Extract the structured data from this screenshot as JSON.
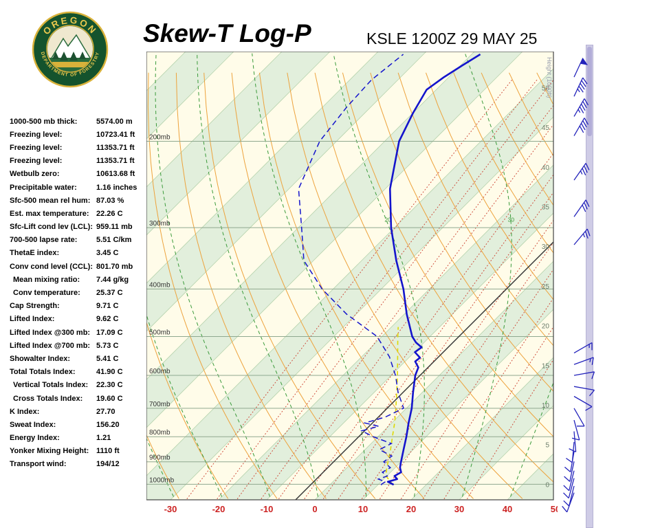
{
  "header": {
    "title": "Skew-T Log-P",
    "station": "KSLE 1200Z 29 MAY 25",
    "logo": {
      "top_text": "OREGON",
      "bottom_text": "DEPARTMENT OF FORESTRY"
    }
  },
  "indices": [
    {
      "label": "1000-500 mb thick:",
      "value": "5574.00 m",
      "indent": false
    },
    {
      "label": "Freezing level:",
      "value": "10723.41 ft",
      "indent": false
    },
    {
      "label": "Freezing level:",
      "value": "11353.71 ft",
      "indent": false
    },
    {
      "label": "Freezing level:",
      "value": "11353.71 ft",
      "indent": false
    },
    {
      "label": "Wetbulb zero:",
      "value": "10613.68 ft",
      "indent": false
    },
    {
      "label": "Precipitable water:",
      "value": "1.16 inches",
      "indent": false
    },
    {
      "label": "Sfc-500 mean rel hum:",
      "value": "87.03 %",
      "indent": false
    },
    {
      "label": "Est. max temperature:",
      "value": "22.26 C",
      "indent": false
    },
    {
      "label": "Sfc-Lift cond lev (LCL):",
      "value": "959.11 mb",
      "indent": false
    },
    {
      "label": "700-500 lapse rate:",
      "value": "5.51 C/km",
      "indent": false
    },
    {
      "label": "ThetaE index:",
      "value": "3.45 C",
      "indent": false
    },
    {
      "label": "Conv cond level (CCL):",
      "value": "801.70 mb",
      "indent": false
    },
    {
      "label": "Mean mixing ratio:",
      "value": "7.44 g/kg",
      "indent": true
    },
    {
      "label": "Conv temperature:",
      "value": "25.37 C",
      "indent": true
    },
    {
      "label": "Cap Strength:",
      "value": "9.71 C",
      "indent": false
    },
    {
      "label": "Lifted Index:",
      "value": "9.62 C",
      "indent": false
    },
    {
      "label": "Lifted Index @300 mb:",
      "value": "17.09 C",
      "indent": false
    },
    {
      "label": "Lifted Index @700 mb:",
      "value": "5.73 C",
      "indent": false
    },
    {
      "label": "Showalter Index:",
      "value": "5.41 C",
      "indent": false
    },
    {
      "label": "Total Totals Index:",
      "value": "41.90 C",
      "indent": false
    },
    {
      "label": "Vertical Totals Index:",
      "value": "22.30 C",
      "indent": true
    },
    {
      "label": "Cross Totals Index:",
      "value": "19.60 C",
      "indent": true
    },
    {
      "label": "K Index:",
      "value": "27.70",
      "indent": false
    },
    {
      "label": "Sweat Index:",
      "value": "156.20",
      "indent": false
    },
    {
      "label": "Energy Index:",
      "value": "1.21",
      "indent": false
    },
    {
      "label": "Yonker Mixing Height:",
      "value": "1110 ft",
      "indent": false
    },
    {
      "label": "Transport wind:",
      "value": "194/12",
      "indent": false
    }
  ],
  "chart_data": {
    "type": "line",
    "variant": "skew-t-log-p",
    "station": "KSLE",
    "valid_time": "1200Z 29 MAY 25",
    "x_axis": {
      "unit": "C",
      "ticks": [
        -30,
        -20,
        -10,
        0,
        10,
        20,
        30,
        40,
        50
      ]
    },
    "pressure_levels_mb": [
      200,
      300,
      400,
      500,
      600,
      700,
      800,
      900,
      1000
    ],
    "pressure_label_suffix": "mb",
    "height_axis": {
      "label": "Height (1000ft)",
      "ticks": [
        0,
        5,
        10,
        15,
        20,
        25,
        30,
        35,
        40,
        45,
        50
      ]
    },
    "series": [
      {
        "name": "temperature",
        "line": "solid",
        "points_p_T": [
          [
            1004,
            13.2
          ],
          [
            1000,
            13.0
          ],
          [
            988,
            11.4
          ],
          [
            976,
            12.8
          ],
          [
            962,
            11.6
          ],
          [
            945,
            12.2
          ],
          [
            925,
            11.0
          ],
          [
            900,
            10.0
          ],
          [
            850,
            8.0
          ],
          [
            800,
            5.9
          ],
          [
            750,
            3.5
          ],
          [
            700,
            1.1
          ],
          [
            650,
            -1.9
          ],
          [
            600,
            -5.0
          ],
          [
            578,
            -6.0
          ],
          [
            562,
            -7.9
          ],
          [
            552,
            -7.7
          ],
          [
            538,
            -9.9
          ],
          [
            526,
            -9.5
          ],
          [
            514,
            -11.7
          ],
          [
            500,
            -13.7
          ],
          [
            450,
            -19.5
          ],
          [
            400,
            -25.4
          ],
          [
            350,
            -32.8
          ],
          [
            300,
            -40.7
          ],
          [
            250,
            -49.0
          ],
          [
            200,
            -57.0
          ],
          [
            175,
            -60.0
          ],
          [
            157,
            -62.0
          ],
          [
            148,
            -61.0
          ],
          [
            140,
            -59.6
          ],
          [
            133,
            -58.2
          ]
        ]
      },
      {
        "name": "dewpoint",
        "line": "dashed",
        "points_p_T": [
          [
            1004,
            10.8
          ],
          [
            1000,
            10.6
          ],
          [
            988,
            10.9
          ],
          [
            976,
            8.9
          ],
          [
            962,
            10.1
          ],
          [
            945,
            8.3
          ],
          [
            925,
            9.0
          ],
          [
            900,
            6.4
          ],
          [
            876,
            6.9
          ],
          [
            850,
            3.0
          ],
          [
            826,
            4.2
          ],
          [
            800,
            -1.0
          ],
          [
            778,
            -4.6
          ],
          [
            762,
            -2.0
          ],
          [
            750,
            -5.6
          ],
          [
            730,
            -2.6
          ],
          [
            700,
            -0.6
          ],
          [
            650,
            -5.0
          ],
          [
            600,
            -9.1
          ],
          [
            550,
            -14.2
          ],
          [
            500,
            -21.0
          ],
          [
            450,
            -32.0
          ],
          [
            400,
            -42.3
          ],
          [
            350,
            -52.0
          ],
          [
            300,
            -59.3
          ],
          [
            250,
            -68.0
          ],
          [
            200,
            -73.5
          ],
          [
            170,
            -75.0
          ],
          [
            150,
            -75.5
          ],
          [
            133,
            -74.2
          ]
        ]
      },
      {
        "name": "parcel",
        "line": "dashed",
        "points_p_T": [
          [
            1004,
            13.2
          ],
          [
            959,
            9.6
          ],
          [
            900,
            7.3
          ],
          [
            850,
            5.3
          ],
          [
            800,
            3.0
          ],
          [
            750,
            0.6
          ],
          [
            700,
            -2.2
          ],
          [
            650,
            -5.3
          ],
          [
            600,
            -8.7
          ],
          [
            550,
            -12.5
          ],
          [
            500,
            -16.7
          ],
          [
            478,
            -18.6
          ]
        ]
      }
    ],
    "wind_barbs_p_dir_spd": [
      [
        148,
        25,
        50
      ],
      [
        162,
        25,
        45
      ],
      [
        178,
        30,
        45
      ],
      [
        195,
        30,
        40
      ],
      [
        240,
        35,
        35
      ],
      [
        285,
        35,
        30
      ],
      [
        325,
        40,
        25
      ],
      [
        540,
        60,
        15
      ],
      [
        570,
        70,
        15
      ],
      [
        600,
        80,
        12
      ],
      [
        632,
        100,
        10
      ],
      [
        662,
        120,
        10
      ],
      [
        700,
        150,
        10
      ],
      [
        740,
        165,
        10
      ],
      [
        780,
        175,
        12
      ],
      [
        820,
        185,
        12
      ],
      [
        858,
        190,
        10
      ],
      [
        898,
        192,
        10
      ],
      [
        938,
        194,
        12
      ],
      [
        972,
        195,
        10
      ],
      [
        1008,
        194,
        12
      ],
      [
        1040,
        200,
        8
      ]
    ],
    "reference_lines": {
      "isotherm_interval_C": 10,
      "highlight_isotherm_C": -4,
      "dry_adiabats_theta_K": [
        240,
        250,
        260,
        270,
        280,
        290,
        300,
        310,
        320,
        330,
        340,
        350,
        360,
        370,
        380,
        390,
        400,
        410,
        420,
        430,
        440,
        450
      ],
      "moist_adiabats_surface_C": [
        -60,
        -50,
        -40,
        -30,
        -20,
        -10,
        0,
        10,
        20,
        30,
        40
      ],
      "moist_adiabat_label_values": [
        20,
        30,
        40
      ],
      "mixing_ratio_g_kg": [
        0.4,
        0.7,
        1,
        1.5,
        2,
        3,
        4,
        5,
        7,
        9,
        12,
        16,
        21,
        28
      ]
    },
    "colors": {
      "temperature": "#1414cc",
      "dewpoint": "#1414cc",
      "parcel": "#ded800",
      "dry_adiabat": "#eda23c",
      "moist_adiabat": "#3a9a3a",
      "mixing_ratio": "#cc4433",
      "band_green": "#e2efdc",
      "band_cream": "#fffce9",
      "isotherm": "#b7d3ae",
      "pressure_line": "#8fa88f",
      "axis_red": "#cc2222",
      "height_label": "#6b7d6b",
      "barb": "#2323bb",
      "highlight_line": "#333333",
      "height_axis_title": "#9aa0b0"
    }
  }
}
